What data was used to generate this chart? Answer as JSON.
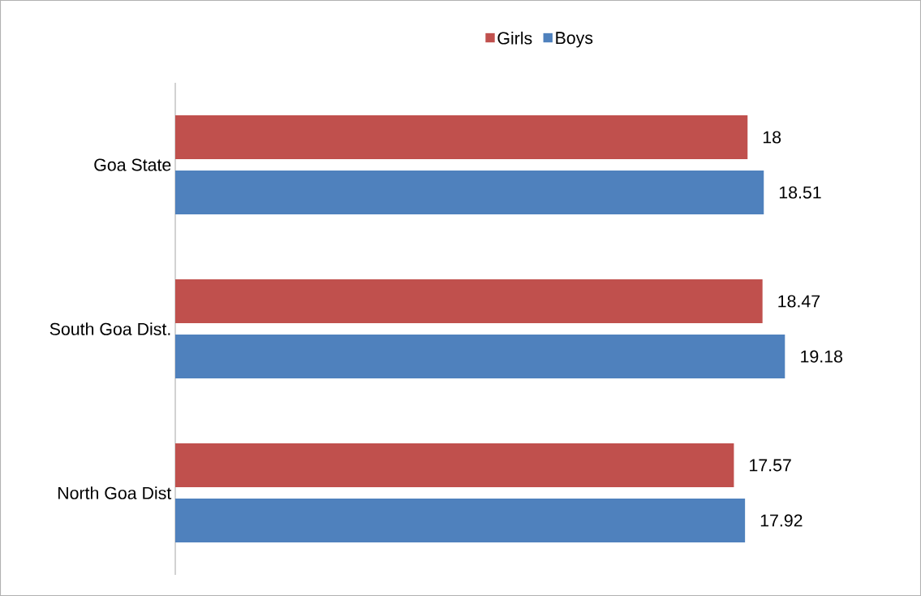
{
  "chart_data": {
    "type": "bar",
    "orientation": "horizontal",
    "categories": [
      "Goa State",
      "South Goa Dist.",
      "North Goa Dist"
    ],
    "series": [
      {
        "name": "Girls",
        "color": "#c0504d",
        "values": [
          18,
          18.47,
          17.57
        ]
      },
      {
        "name": "Boys",
        "color": "#4f81bd",
        "values": [
          18.51,
          19.18,
          17.92
        ]
      }
    ],
    "tick_labels": "y",
    "data_labels": true,
    "legend": "top"
  }
}
